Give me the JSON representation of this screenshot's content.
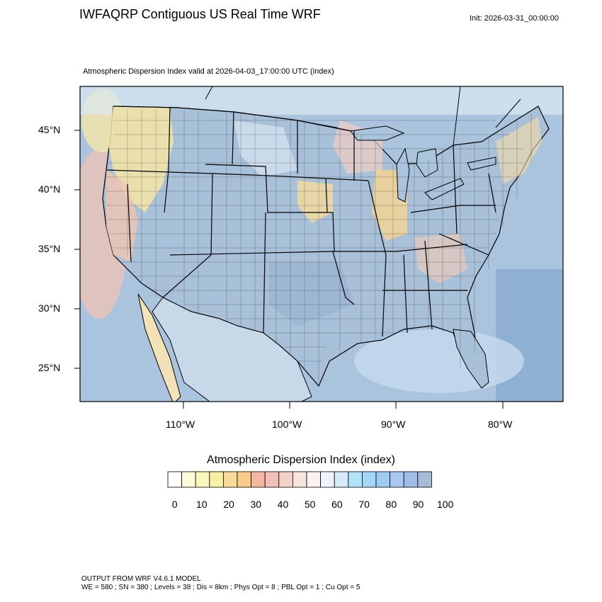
{
  "header": {
    "title": "IWFAQRP Contiguous US Real Time WRF",
    "init": "Init: 2026-03-31_00:00:00"
  },
  "map": {
    "subtitle": "Atmospheric Dispersion Index valid at 2026-04-03_17:00:00 UTC   (index)",
    "lat_labels": [
      "45°N",
      "40°N",
      "35°N",
      "30°N",
      "25°N"
    ],
    "lon_labels": [
      "110°W",
      "100°W",
      "90°W",
      "80°W"
    ]
  },
  "legend": {
    "title": "Atmospheric Dispersion Index  (index)",
    "tick_labels": [
      "0",
      "10",
      "20",
      "30",
      "40",
      "50",
      "60",
      "70",
      "80",
      "90",
      "100"
    ],
    "colors": [
      "#ffffff",
      "#fdfcd9",
      "#fbf8bd",
      "#f8efa6",
      "#f7dc98",
      "#f9cc8c",
      "#f7b6a0",
      "#f2c0b8",
      "#f2d2c8",
      "#f8e4dc",
      "#fdf2f2",
      "#eef4fc",
      "#d6eafa",
      "#b0e2f8",
      "#a2d8f6",
      "#a0ccf4",
      "#a8c8f2",
      "#a0bcea",
      "#a4bcd8"
    ]
  },
  "footer": {
    "line1": "OUTPUT FROM WRF V4.6.1 MODEL",
    "line2": "WE = 580 ; SN = 380 ; Levels = 38 ; Dis = 8km ; Phys Opt = 8 ; PBL Opt = 1 ; Cu Opt = 5"
  }
}
